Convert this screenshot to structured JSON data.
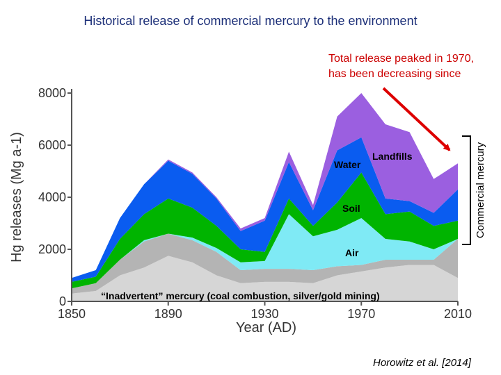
{
  "title": "Historical release of commercial mercury to the environment",
  "annotation": {
    "line1": "Total release peaked in 1970,",
    "line2": "has been decreasing since",
    "color": "#dd0000"
  },
  "credit": "Horowitz et al. [2014]",
  "chart_data": {
    "type": "area",
    "stacked": true,
    "xlabel": "Year (AD)",
    "ylabel": "Hg releases (Mg a-1)",
    "xlim": [
      1850,
      2010
    ],
    "ylim": [
      0,
      8000
    ],
    "xticks": [
      1850,
      1890,
      1930,
      1970,
      2010
    ],
    "yticks": [
      0,
      2000,
      4000,
      6000,
      8000
    ],
    "x": [
      1850,
      1860,
      1870,
      1880,
      1890,
      1900,
      1910,
      1920,
      1930,
      1940,
      1950,
      1960,
      1970,
      1980,
      1990,
      2000,
      2010
    ],
    "series": [
      {
        "name": "“Inadvertent” mercury (coal combustion, silver/gold mining)",
        "color": "#d6d6d6",
        "values": [
          300,
          400,
          1000,
          1300,
          1750,
          1500,
          1000,
          700,
          750,
          750,
          700,
          1000,
          1150,
          1300,
          1400,
          1400,
          900
        ]
      },
      {
        "name": "",
        "color": "#b4b4b4",
        "values": [
          200,
          300,
          600,
          1000,
          850,
          850,
          900,
          500,
          500,
          500,
          500,
          350,
          250,
          300,
          200,
          200,
          1500
        ]
      },
      {
        "name": "Air",
        "color": "#7feaf5",
        "values": [
          0,
          0,
          0,
          50,
          0,
          100,
          150,
          300,
          300,
          2100,
          1300,
          1400,
          1800,
          800,
          700,
          400,
          0
        ]
      },
      {
        "name": "Soil",
        "color": "#00b400",
        "values": [
          250,
          250,
          800,
          1000,
          1350,
          1150,
          850,
          500,
          350,
          600,
          400,
          1050,
          1750,
          950,
          1150,
          900,
          700
        ]
      },
      {
        "name": "Water",
        "color": "#0a5cf0",
        "values": [
          150,
          250,
          800,
          1150,
          1450,
          1300,
          1050,
          700,
          1200,
          1400,
          600,
          2000,
          1350,
          600,
          400,
          500,
          1200
        ]
      },
      {
        "name": "Landfills",
        "color": "#9b5fe0",
        "values": [
          0,
          0,
          0,
          0,
          50,
          50,
          50,
          100,
          100,
          400,
          200,
          1300,
          1700,
          2850,
          2650,
          1300,
          1000
        ]
      }
    ],
    "labels": {
      "water": "Water",
      "landfills": "Landfills",
      "soil": "Soil",
      "air": "Air",
      "inadvertent": "“Inadvertent” mercury (coal combustion, silver/gold mining)",
      "bracket": "Commercial mercury"
    }
  }
}
